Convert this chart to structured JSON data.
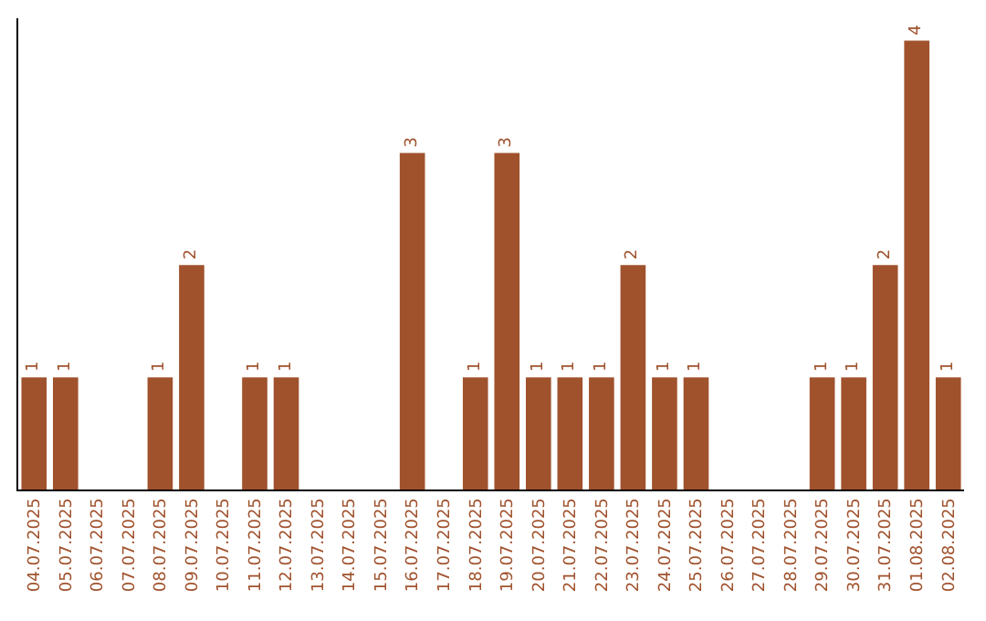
{
  "chart_data": {
    "type": "bar",
    "categories": [
      "04.07.2025",
      "05.07.2025",
      "06.07.2025",
      "07.07.2025",
      "08.07.2025",
      "09.07.2025",
      "10.07.2025",
      "11.07.2025",
      "12.07.2025",
      "13.07.2025",
      "14.07.2025",
      "15.07.2025",
      "16.07.2025",
      "17.07.2025",
      "18.07.2025",
      "19.07.2025",
      "20.07.2025",
      "21.07.2025",
      "22.07.2025",
      "23.07.2025",
      "24.07.2025",
      "25.07.2025",
      "26.07.2025",
      "27.07.2025",
      "28.07.2025",
      "29.07.2025",
      "30.07.2025",
      "31.07.2025",
      "01.08.2025",
      "02.08.2025"
    ],
    "values": [
      1,
      1,
      0,
      0,
      1,
      2,
      0,
      1,
      1,
      0,
      0,
      0,
      3,
      0,
      1,
      3,
      1,
      1,
      1,
      2,
      1,
      1,
      0,
      0,
      0,
      1,
      1,
      2,
      4,
      1
    ],
    "value_labels": [
      "1",
      "1",
      null,
      null,
      "1",
      "2",
      null,
      "1",
      "1",
      null,
      null,
      null,
      "3",
      null,
      "1",
      "3",
      "1",
      "1",
      "1",
      "2",
      "1",
      "1",
      null,
      null,
      null,
      "1",
      "1",
      "2",
      "4",
      "1"
    ],
    "color": "#a0522d",
    "ylim": [
      0,
      4.2
    ],
    "tick_labels": "x"
  }
}
